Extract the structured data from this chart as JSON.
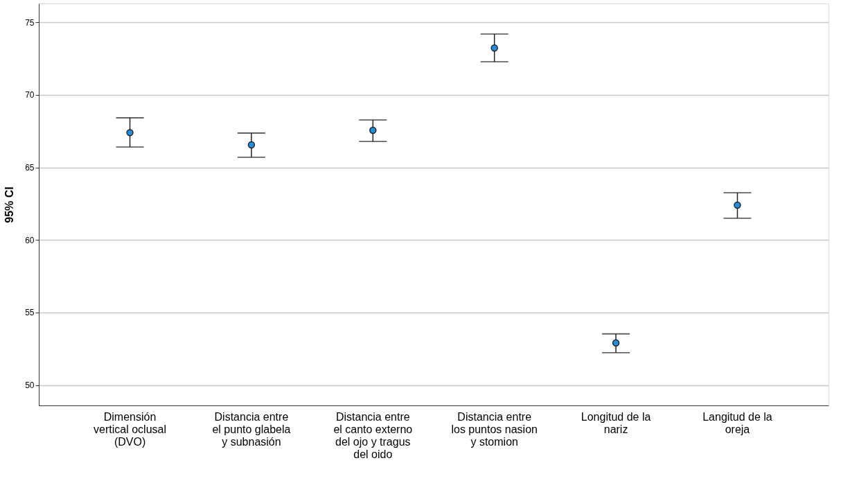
{
  "chart_data": {
    "type": "scatter",
    "ylabel": "95% CI",
    "categories": [
      "Dimensión vertical oclusal (DVO)",
      "Distancia entre el punto glabela y subnasión",
      "Distancia entre el canto externo del ojo y tragus del oido",
      "Distancia entre los puntos nasion y stomion",
      "Longitud de la nariz",
      "Langitud de la oreja"
    ],
    "series": [
      {
        "color": "#1f8fe0",
        "values": [
          67.4,
          66.56,
          67.56,
          73.23,
          52.91,
          62.4
        ],
        "errors": [
          [
            66.41,
            68.42
          ],
          [
            65.7,
            67.37
          ],
          [
            66.79,
            68.27
          ],
          [
            72.28,
            74.19
          ],
          [
            52.24,
            53.53
          ],
          [
            61.5,
            63.26
          ]
        ]
      }
    ],
    "ylim": [
      48.6,
      76.3
    ],
    "yticks": [
      50,
      55,
      60,
      65,
      70,
      75
    ],
    "grid": "y",
    "marker": "circle"
  }
}
